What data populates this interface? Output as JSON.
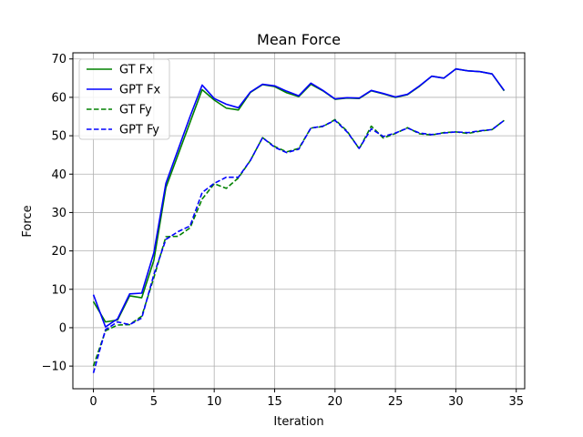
{
  "chart_data": {
    "type": "line",
    "title": "Mean Force",
    "xlabel": "Iteration",
    "ylabel": "Force",
    "xlim": [
      -1.7,
      35.7
    ],
    "ylim": [
      -15.9,
      71.6
    ],
    "xticks": [
      0,
      5,
      10,
      15,
      20,
      25,
      30,
      35
    ],
    "yticks": [
      -10,
      0,
      10,
      20,
      30,
      40,
      50,
      60,
      70
    ],
    "grid": true,
    "legend_position": "top-left",
    "series": [
      {
        "name": "GT Fx",
        "color": "#008000",
        "dash": "solid",
        "x": [
          0,
          1,
          2,
          3,
          4,
          5,
          6,
          7,
          8,
          9,
          10,
          11,
          12,
          13,
          14,
          15,
          16,
          17,
          18,
          19,
          20,
          21,
          22,
          23,
          24,
          25,
          26,
          27,
          28,
          29,
          30,
          31,
          32,
          33,
          34
        ],
        "y": [
          6.8,
          1.5,
          2.0,
          8.3,
          7.8,
          17.5,
          36.5,
          45.0,
          53.5,
          62.0,
          59.3,
          57.2,
          56.7,
          61.3,
          63.3,
          62.8,
          61.2,
          60.2,
          63.4,
          61.7,
          59.5,
          59.8,
          59.7,
          61.7,
          60.9,
          60.0,
          60.7,
          62.9,
          65.5,
          65.0,
          67.4,
          66.9,
          66.7,
          66.1,
          61.7
        ]
      },
      {
        "name": "GPT Fx",
        "color": "#0000ff",
        "dash": "solid",
        "x": [
          0,
          1,
          2,
          3,
          4,
          5,
          6,
          7,
          8,
          9,
          10,
          11,
          12,
          13,
          14,
          15,
          16,
          17,
          18,
          19,
          20,
          21,
          22,
          23,
          24,
          25,
          26,
          27,
          28,
          29,
          30,
          31,
          32,
          33,
          34
        ],
        "y": [
          8.6,
          0.2,
          2.3,
          8.8,
          9.0,
          19.5,
          37.6,
          46.3,
          55.0,
          63.2,
          59.7,
          58.2,
          57.3,
          61.4,
          63.4,
          63.0,
          61.6,
          60.4,
          63.7,
          61.8,
          59.6,
          59.9,
          59.8,
          61.8,
          61.0,
          60.1,
          60.8,
          63.0,
          65.5,
          65.0,
          67.4,
          66.9,
          66.7,
          66.1,
          61.8
        ]
      },
      {
        "name": "GT Fy",
        "color": "#008000",
        "dash": "dashed",
        "x": [
          0,
          1,
          2,
          3,
          4,
          5,
          6,
          7,
          8,
          9,
          10,
          11,
          12,
          13,
          14,
          15,
          16,
          17,
          18,
          19,
          20,
          21,
          22,
          23,
          24,
          25,
          26,
          27,
          28,
          29,
          30,
          31,
          32,
          33,
          34
        ],
        "y": [
          -10.0,
          -0.8,
          0.7,
          0.8,
          3.0,
          13.0,
          23.7,
          23.8,
          26.0,
          33.5,
          37.5,
          36.3,
          39.0,
          43.6,
          49.5,
          47.2,
          45.8,
          46.7,
          52.0,
          52.4,
          54.2,
          51.2,
          46.6,
          52.5,
          49.4,
          50.6,
          52.1,
          50.5,
          50.2,
          50.8,
          51.0,
          50.6,
          51.2,
          51.6,
          54.0
        ]
      },
      {
        "name": "GPT Fy",
        "color": "#0000ff",
        "dash": "dashed",
        "x": [
          0,
          1,
          2,
          3,
          4,
          5,
          6,
          7,
          8,
          9,
          10,
          11,
          12,
          13,
          14,
          15,
          16,
          17,
          18,
          19,
          20,
          21,
          22,
          23,
          24,
          25,
          26,
          27,
          28,
          29,
          30,
          31,
          32,
          33,
          34
        ],
        "y": [
          -11.8,
          -0.5,
          1.5,
          0.8,
          2.5,
          13.8,
          23.0,
          25.0,
          26.5,
          35.2,
          37.6,
          39.2,
          39.2,
          43.6,
          49.5,
          47.0,
          45.6,
          46.5,
          52.0,
          52.5,
          54.0,
          51.0,
          46.7,
          51.8,
          49.8,
          50.7,
          52.0,
          50.7,
          50.3,
          50.7,
          51.0,
          50.8,
          51.3,
          51.6,
          54.0
        ]
      }
    ]
  }
}
